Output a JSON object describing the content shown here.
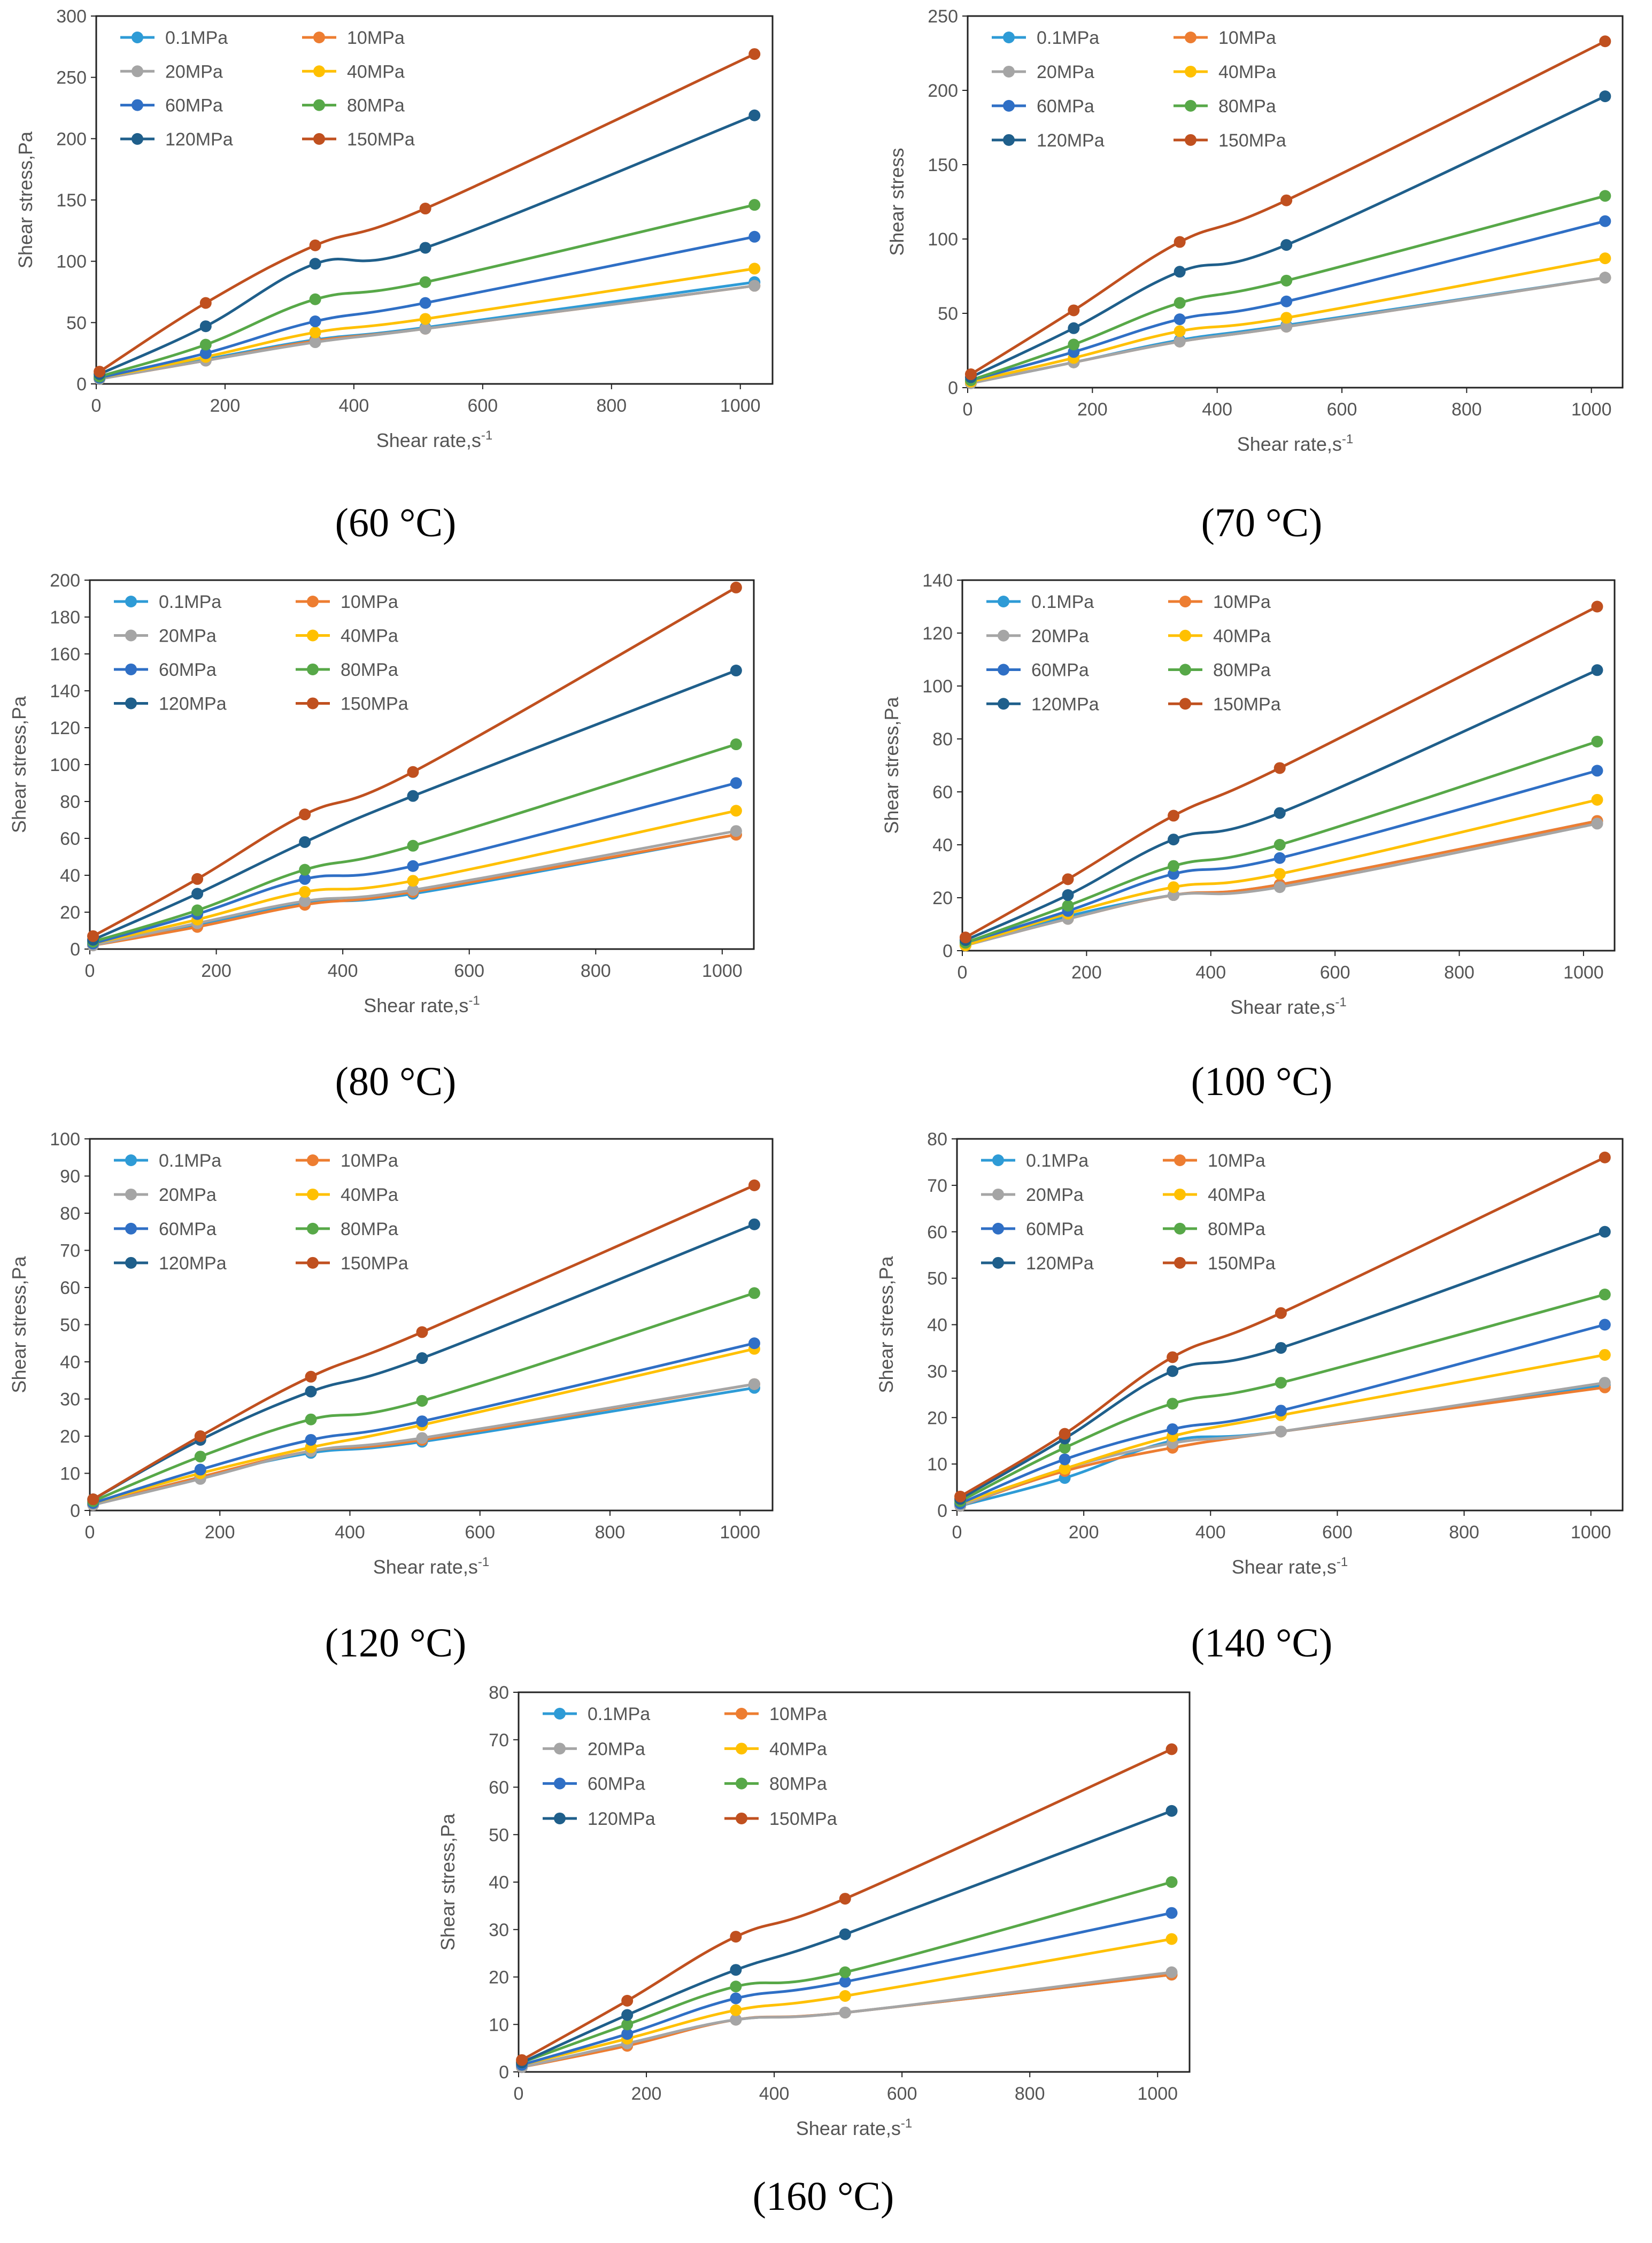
{
  "figure": {
    "series_names": [
      "0.1MPa",
      "10MPa",
      "20MPa",
      "40MPa",
      "60MPa",
      "80MPa",
      "120MPa",
      "150MPa"
    ],
    "series_colors": [
      "#2e9bd6",
      "#ed7d31",
      "#a5a5a5",
      "#ffc000",
      "#2f6fc5",
      "#57a848",
      "#1f5f8b",
      "#c0501f"
    ]
  },
  "chart_data": [
    {
      "type": "line",
      "title": "(60 °C)",
      "xlabel": "Shear rate,s",
      "xlabel_sup": "-1",
      "ylabel": "Shear stress,Pa",
      "xlim": [
        0,
        1050
      ],
      "ylim": [
        0,
        300
      ],
      "xticks": [
        0,
        200,
        400,
        600,
        800,
        1000
      ],
      "yticks": [
        0,
        50,
        100,
        150,
        200,
        250,
        300
      ],
      "x": [
        5.1,
        170,
        340,
        511,
        1022
      ],
      "series": [
        {
          "name": "0.1MPa",
          "values": [
            4,
            20,
            36,
            46,
            83
          ]
        },
        {
          "name": "10MPa",
          "values": [
            4,
            19,
            35,
            45,
            80
          ]
        },
        {
          "name": "20MPa",
          "values": [
            4,
            19,
            34,
            45,
            80
          ]
        },
        {
          "name": "40MPa",
          "values": [
            5,
            22,
            42,
            53,
            94
          ]
        },
        {
          "name": "60MPa",
          "values": [
            5,
            25,
            51,
            66,
            120
          ]
        },
        {
          "name": "80MPa",
          "values": [
            6,
            32,
            69,
            83,
            146
          ]
        },
        {
          "name": "120MPa",
          "values": [
            8,
            47,
            98,
            111,
            219
          ]
        },
        {
          "name": "150MPa",
          "values": [
            10,
            66,
            113,
            143,
            269
          ]
        }
      ]
    },
    {
      "type": "line",
      "title": "(70 °C)",
      "xlabel": "Shear rate,s",
      "xlabel_sup": "-1",
      "ylabel": "Shear stress",
      "xlim": [
        0,
        1050
      ],
      "ylim": [
        0,
        250
      ],
      "xticks": [
        0,
        200,
        400,
        600,
        800,
        1000
      ],
      "yticks": [
        0,
        50,
        100,
        150,
        200,
        250
      ],
      "x": [
        5.1,
        170,
        340,
        511,
        1022
      ],
      "series": [
        {
          "name": "0.1MPa",
          "values": [
            3,
            17,
            32,
            42,
            74
          ]
        },
        {
          "name": "10MPa",
          "values": [
            3,
            17,
            31,
            41,
            74
          ]
        },
        {
          "name": "20MPa",
          "values": [
            3,
            17,
            31,
            41,
            74
          ]
        },
        {
          "name": "40MPa",
          "values": [
            4,
            20,
            38,
            47,
            87
          ]
        },
        {
          "name": "60MPa",
          "values": [
            5,
            24,
            46,
            58,
            112
          ]
        },
        {
          "name": "80MPa",
          "values": [
            5,
            29,
            57,
            72,
            129
          ]
        },
        {
          "name": "120MPa",
          "values": [
            7,
            40,
            78,
            96,
            196
          ]
        },
        {
          "name": "150MPa",
          "values": [
            9,
            52,
            98,
            126,
            233
          ]
        }
      ]
    },
    {
      "type": "line",
      "title": "(80 °C)",
      "xlabel": "Shear rate,s",
      "xlabel_sup": "-1",
      "ylabel": "Shear stress,Pa",
      "xlim": [
        0,
        1050
      ],
      "ylim": [
        0,
        200
      ],
      "xticks": [
        0,
        200,
        400,
        600,
        800,
        1000
      ],
      "yticks": [
        0,
        20,
        40,
        60,
        80,
        100,
        120,
        140,
        160,
        180,
        200
      ],
      "x": [
        5.1,
        170,
        340,
        511,
        1022
      ],
      "series": [
        {
          "name": "0.1MPa",
          "values": [
            2,
            13,
            25,
            30,
            62
          ]
        },
        {
          "name": "10MPa",
          "values": [
            2,
            12,
            24,
            31,
            62
          ]
        },
        {
          "name": "20MPa",
          "values": [
            2,
            14,
            26,
            32,
            64
          ]
        },
        {
          "name": "40MPa",
          "values": [
            3,
            16,
            31,
            37,
            75
          ]
        },
        {
          "name": "60MPa",
          "values": [
            3,
            19,
            38,
            45,
            90
          ]
        },
        {
          "name": "80MPa",
          "values": [
            4,
            21,
            43,
            56,
            111
          ]
        },
        {
          "name": "120MPa",
          "values": [
            5,
            30,
            58,
            83,
            151
          ]
        },
        {
          "name": "150MPa",
          "values": [
            7,
            38,
            73,
            96,
            196
          ]
        }
      ]
    },
    {
      "type": "line",
      "title": "(100 °C)",
      "xlabel": "Shear rate,s",
      "xlabel_sup": "-1",
      "ylabel": "Shear stress,Pa",
      "xlim": [
        0,
        1050
      ],
      "ylim": [
        0,
        140
      ],
      "xticks": [
        0,
        200,
        400,
        600,
        800,
        1000
      ],
      "yticks": [
        0,
        20,
        40,
        60,
        80,
        100,
        120,
        140
      ],
      "x": [
        5.1,
        170,
        340,
        511,
        1022
      ],
      "series": [
        {
          "name": "0.1MPa",
          "values": [
            2,
            13,
            21,
            25,
            49
          ]
        },
        {
          "name": "10MPa",
          "values": [
            2,
            12,
            21,
            25,
            49
          ]
        },
        {
          "name": "20MPa",
          "values": [
            2,
            12,
            21,
            24,
            48
          ]
        },
        {
          "name": "40MPa",
          "values": [
            2,
            14,
            24,
            29,
            57
          ]
        },
        {
          "name": "60MPa",
          "values": [
            3,
            15,
            29,
            35,
            68
          ]
        },
        {
          "name": "80MPa",
          "values": [
            3,
            17,
            32,
            40,
            79
          ]
        },
        {
          "name": "120MPa",
          "values": [
            4,
            21,
            42,
            52,
            106
          ]
        },
        {
          "name": "150MPa",
          "values": [
            5,
            27,
            51,
            69,
            130
          ]
        }
      ]
    },
    {
      "type": "line",
      "title": "(120 °C)",
      "xlabel": "Shear rate,s",
      "xlabel_sup": "-1",
      "ylabel": "Shear stress,Pa",
      "xlim": [
        0,
        1050
      ],
      "ylim": [
        0,
        100
      ],
      "xticks": [
        0,
        200,
        400,
        600,
        800,
        1000
      ],
      "yticks": [
        0,
        10,
        20,
        30,
        40,
        50,
        60,
        70,
        80,
        90,
        100
      ],
      "x": [
        5.1,
        170,
        340,
        511,
        1022
      ],
      "series": [
        {
          "name": "0.1MPa",
          "values": [
            1.5,
            9,
            15.5,
            18.5,
            33
          ]
        },
        {
          "name": "10MPa",
          "values": [
            1.5,
            9,
            16,
            19,
            34
          ]
        },
        {
          "name": "20MPa",
          "values": [
            1.5,
            8.5,
            16,
            19.5,
            34
          ]
        },
        {
          "name": "40MPa",
          "values": [
            2,
            10,
            17,
            23,
            43.5
          ]
        },
        {
          "name": "60MPa",
          "values": [
            2,
            11,
            19,
            24,
            45
          ]
        },
        {
          "name": "80MPa",
          "values": [
            2.5,
            14.5,
            24.5,
            29.5,
            58.5
          ]
        },
        {
          "name": "120MPa",
          "values": [
            3,
            19,
            32,
            41,
            77
          ]
        },
        {
          "name": "150MPa",
          "values": [
            3,
            20,
            36,
            48,
            87.5
          ]
        }
      ]
    },
    {
      "type": "line",
      "title": "(140 °C)",
      "xlabel": "Shear rate,s",
      "xlabel_sup": "-1",
      "ylabel": "Shear stress,Pa",
      "xlim": [
        0,
        1050
      ],
      "ylim": [
        0,
        80
      ],
      "xticks": [
        0,
        200,
        400,
        600,
        800,
        1000
      ],
      "yticks": [
        0,
        10,
        20,
        30,
        40,
        50,
        60,
        70,
        80
      ],
      "x": [
        5.1,
        170,
        340,
        511,
        1022
      ],
      "series": [
        {
          "name": "0.1MPa",
          "values": [
            1,
            7,
            15,
            17,
            27
          ]
        },
        {
          "name": "10MPa",
          "values": [
            1,
            8.5,
            13.5,
            17,
            26.5
          ]
        },
        {
          "name": "20MPa",
          "values": [
            1,
            9,
            14.5,
            17,
            27.5
          ]
        },
        {
          "name": "40MPa",
          "values": [
            1.5,
            9,
            16,
            20.5,
            33.5
          ]
        },
        {
          "name": "60MPa",
          "values": [
            1.5,
            11,
            17.5,
            21.5,
            40
          ]
        },
        {
          "name": "80MPa",
          "values": [
            2,
            13.5,
            23,
            27.5,
            46.5
          ]
        },
        {
          "name": "120MPa",
          "values": [
            2.5,
            15.5,
            30,
            35,
            60
          ]
        },
        {
          "name": "150MPa",
          "values": [
            3,
            16.5,
            33,
            42.5,
            76
          ]
        }
      ]
    },
    {
      "type": "line",
      "title": "(160 °C)",
      "xlabel": "Shear rate,s",
      "xlabel_sup": "-1",
      "ylabel": "Shear stress,Pa",
      "xlim": [
        0,
        1050
      ],
      "ylim": [
        0,
        80
      ],
      "xticks": [
        0,
        200,
        400,
        600,
        800,
        1000
      ],
      "yticks": [
        0,
        10,
        20,
        30,
        40,
        50,
        60,
        70,
        80
      ],
      "x": [
        5.1,
        170,
        340,
        511,
        1022
      ],
      "series": [
        {
          "name": "0.1MPa",
          "values": [
            1,
            6,
            11,
            12.5,
            20.5
          ]
        },
        {
          "name": "10MPa",
          "values": [
            1,
            5.5,
            11,
            12.5,
            20.5
          ]
        },
        {
          "name": "20MPa",
          "values": [
            1,
            6,
            11,
            12.5,
            21
          ]
        },
        {
          "name": "40MPa",
          "values": [
            1.5,
            7,
            13,
            16,
            28
          ]
        },
        {
          "name": "60MPa",
          "values": [
            1.5,
            8,
            15.5,
            19,
            33.5
          ]
        },
        {
          "name": "80MPa",
          "values": [
            2,
            10,
            18,
            21,
            40
          ]
        },
        {
          "name": "120MPa",
          "values": [
            2,
            12,
            21.5,
            29,
            55
          ]
        },
        {
          "name": "150MPa",
          "values": [
            2.5,
            15,
            28.5,
            36.5,
            68
          ]
        }
      ]
    }
  ]
}
